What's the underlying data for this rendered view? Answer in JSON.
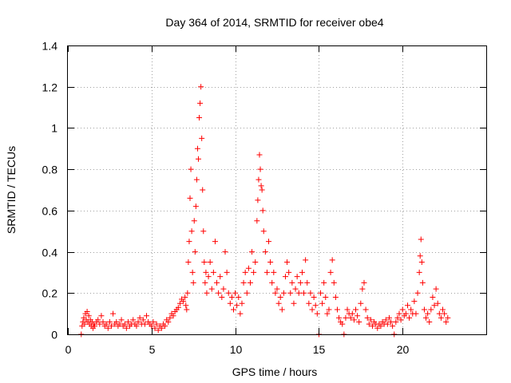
{
  "chart_data": {
    "type": "scatter",
    "title": "Day 364 of 2014, SRMTID for receiver obe4",
    "xlabel": "GPS time / hours",
    "ylabel": "SRMTID / TECUs",
    "xlim": [
      0,
      25
    ],
    "ylim": [
      0,
      1.4
    ],
    "xticks": [
      0,
      5,
      10,
      15,
      20
    ],
    "xtick_labels": [
      "0",
      "5",
      "10",
      "15",
      "20"
    ],
    "yticks": [
      0,
      0.2,
      0.4,
      0.6,
      0.8,
      1.0,
      1.2,
      1.4
    ],
    "ytick_labels": [
      "0",
      "0.2",
      "0.4",
      "0.6",
      "0.8",
      "1",
      "1.2",
      "1.4"
    ],
    "grid": true,
    "marker": "plus",
    "color": "#ff0000",
    "series": [
      {
        "name": "obe4",
        "points": [
          [
            0.8,
            0.0
          ],
          [
            0.85,
            0.04
          ],
          [
            0.9,
            0.06
          ],
          [
            0.95,
            0.08
          ],
          [
            1.0,
            0.05
          ],
          [
            1.05,
            0.1
          ],
          [
            1.1,
            0.07
          ],
          [
            1.15,
            0.11
          ],
          [
            1.2,
            0.06
          ],
          [
            1.25,
            0.09
          ],
          [
            1.3,
            0.05
          ],
          [
            1.35,
            0.07
          ],
          [
            1.4,
            0.04
          ],
          [
            1.45,
            0.06
          ],
          [
            1.5,
            0.03
          ],
          [
            1.55,
            0.05
          ],
          [
            1.6,
            0.04
          ],
          [
            1.7,
            0.06
          ],
          [
            1.8,
            0.07
          ],
          [
            1.9,
            0.05
          ],
          [
            2.0,
            0.09
          ],
          [
            2.1,
            0.06
          ],
          [
            2.2,
            0.04
          ],
          [
            2.3,
            0.05
          ],
          [
            2.4,
            0.03
          ],
          [
            2.5,
            0.06
          ],
          [
            2.6,
            0.04
          ],
          [
            2.7,
            0.1
          ],
          [
            2.8,
            0.05
          ],
          [
            2.9,
            0.06
          ],
          [
            3.0,
            0.04
          ],
          [
            3.1,
            0.05
          ],
          [
            3.2,
            0.07
          ],
          [
            3.3,
            0.04
          ],
          [
            3.4,
            0.05
          ],
          [
            3.5,
            0.03
          ],
          [
            3.6,
            0.06
          ],
          [
            3.7,
            0.04
          ],
          [
            3.8,
            0.05
          ],
          [
            3.9,
            0.07
          ],
          [
            4.0,
            0.05
          ],
          [
            4.1,
            0.04
          ],
          [
            4.2,
            0.06
          ],
          [
            4.3,
            0.08
          ],
          [
            4.4,
            0.05
          ],
          [
            4.5,
            0.07
          ],
          [
            4.6,
            0.05
          ],
          [
            4.7,
            0.09
          ],
          [
            4.8,
            0.06
          ],
          [
            4.9,
            0.05
          ],
          [
            5.0,
            0.04
          ],
          [
            5.1,
            0.06
          ],
          [
            5.2,
            0.03
          ],
          [
            5.3,
            0.05
          ],
          [
            5.4,
            0.02
          ],
          [
            5.5,
            0.04
          ],
          [
            5.6,
            0.03
          ],
          [
            5.7,
            0.05
          ],
          [
            5.8,
            0.04
          ],
          [
            5.9,
            0.07
          ],
          [
            6.0,
            0.06
          ],
          [
            6.1,
            0.08
          ],
          [
            6.2,
            0.1
          ],
          [
            6.3,
            0.09
          ],
          [
            6.4,
            0.11
          ],
          [
            6.5,
            0.12
          ],
          [
            6.6,
            0.13
          ],
          [
            6.7,
            0.15
          ],
          [
            6.8,
            0.17
          ],
          [
            6.9,
            0.16
          ],
          [
            7.0,
            0.18
          ],
          [
            7.05,
            0.14
          ],
          [
            7.1,
            0.12
          ],
          [
            7.15,
            0.2
          ],
          [
            7.2,
            0.35
          ],
          [
            7.25,
            0.45
          ],
          [
            7.3,
            0.66
          ],
          [
            7.35,
            0.8
          ],
          [
            7.4,
            0.5
          ],
          [
            7.45,
            0.3
          ],
          [
            7.5,
            0.25
          ],
          [
            7.55,
            0.55
          ],
          [
            7.6,
            0.4
          ],
          [
            7.65,
            0.62
          ],
          [
            7.7,
            0.75
          ],
          [
            7.75,
            0.9
          ],
          [
            7.8,
            0.85
          ],
          [
            7.85,
            1.05
          ],
          [
            7.9,
            1.12
          ],
          [
            7.95,
            1.2
          ],
          [
            8.0,
            0.95
          ],
          [
            8.05,
            0.7
          ],
          [
            8.1,
            0.5
          ],
          [
            8.15,
            0.35
          ],
          [
            8.2,
            0.25
          ],
          [
            8.25,
            0.3
          ],
          [
            8.3,
            0.2
          ],
          [
            8.4,
            0.28
          ],
          [
            8.5,
            0.35
          ],
          [
            8.6,
            0.22
          ],
          [
            8.7,
            0.3
          ],
          [
            8.8,
            0.45
          ],
          [
            8.9,
            0.25
          ],
          [
            9.0,
            0.2
          ],
          [
            9.1,
            0.28
          ],
          [
            9.2,
            0.18
          ],
          [
            9.3,
            0.22
          ],
          [
            9.4,
            0.4
          ],
          [
            9.5,
            0.3
          ],
          [
            9.6,
            0.2
          ],
          [
            9.7,
            0.15
          ],
          [
            9.8,
            0.18
          ],
          [
            9.9,
            0.12
          ],
          [
            10.0,
            0.2
          ],
          [
            10.1,
            0.14
          ],
          [
            10.2,
            0.18
          ],
          [
            10.3,
            0.1
          ],
          [
            10.4,
            0.15
          ],
          [
            10.5,
            0.25
          ],
          [
            10.6,
            0.3
          ],
          [
            10.7,
            0.2
          ],
          [
            10.8,
            0.32
          ],
          [
            10.9,
            0.25
          ],
          [
            11.0,
            0.4
          ],
          [
            11.1,
            0.3
          ],
          [
            11.2,
            0.35
          ],
          [
            11.3,
            0.55
          ],
          [
            11.35,
            0.65
          ],
          [
            11.4,
            0.75
          ],
          [
            11.45,
            0.87
          ],
          [
            11.5,
            0.8
          ],
          [
            11.55,
            0.72
          ],
          [
            11.6,
            0.7
          ],
          [
            11.65,
            0.6
          ],
          [
            11.7,
            0.5
          ],
          [
            11.8,
            0.4
          ],
          [
            11.9,
            0.3
          ],
          [
            12.0,
            0.45
          ],
          [
            12.1,
            0.35
          ],
          [
            12.2,
            0.25
          ],
          [
            12.3,
            0.3
          ],
          [
            12.4,
            0.2
          ],
          [
            12.5,
            0.22
          ],
          [
            12.6,
            0.15
          ],
          [
            12.7,
            0.18
          ],
          [
            12.8,
            0.12
          ],
          [
            12.9,
            0.2
          ],
          [
            13.0,
            0.28
          ],
          [
            13.1,
            0.35
          ],
          [
            13.2,
            0.3
          ],
          [
            13.3,
            0.2
          ],
          [
            13.4,
            0.25
          ],
          [
            13.5,
            0.15
          ],
          [
            13.6,
            0.22
          ],
          [
            13.7,
            0.28
          ],
          [
            13.8,
            0.2
          ],
          [
            13.9,
            0.25
          ],
          [
            14.0,
            0.3
          ],
          [
            14.1,
            0.2
          ],
          [
            14.2,
            0.36
          ],
          [
            14.3,
            0.25
          ],
          [
            14.4,
            0.15
          ],
          [
            14.5,
            0.2
          ],
          [
            14.6,
            0.12
          ],
          [
            14.7,
            0.18
          ],
          [
            14.8,
            0.14
          ],
          [
            14.9,
            0.1
          ],
          [
            15.0,
            0.0
          ],
          [
            15.1,
            0.2
          ],
          [
            15.2,
            0.15
          ],
          [
            15.3,
            0.25
          ],
          [
            15.4,
            0.18
          ],
          [
            15.5,
            0.1
          ],
          [
            15.6,
            0.12
          ],
          [
            15.7,
            0.3
          ],
          [
            15.8,
            0.36
          ],
          [
            15.9,
            0.25
          ],
          [
            16.0,
            0.18
          ],
          [
            16.1,
            0.12
          ],
          [
            16.2,
            0.08
          ],
          [
            16.3,
            0.06
          ],
          [
            16.4,
            0.05
          ],
          [
            16.5,
            0.0
          ],
          [
            16.6,
            0.08
          ],
          [
            16.7,
            0.12
          ],
          [
            16.8,
            0.1
          ],
          [
            16.9,
            0.08
          ],
          [
            17.0,
            0.1
          ],
          [
            17.1,
            0.07
          ],
          [
            17.2,
            0.12
          ],
          [
            17.3,
            0.09
          ],
          [
            17.4,
            0.06
          ],
          [
            17.5,
            0.15
          ],
          [
            17.6,
            0.22
          ],
          [
            17.7,
            0.25
          ],
          [
            17.8,
            0.12
          ],
          [
            17.9,
            0.08
          ],
          [
            18.0,
            0.05
          ],
          [
            18.1,
            0.07
          ],
          [
            18.2,
            0.04
          ],
          [
            18.3,
            0.06
          ],
          [
            18.4,
            0.05
          ],
          [
            18.5,
            0.03
          ],
          [
            18.6,
            0.05
          ],
          [
            18.7,
            0.04
          ],
          [
            18.8,
            0.06
          ],
          [
            18.9,
            0.05
          ],
          [
            19.0,
            0.07
          ],
          [
            19.1,
            0.05
          ],
          [
            19.2,
            0.08
          ],
          [
            19.3,
            0.06
          ],
          [
            19.4,
            0.04
          ],
          [
            19.5,
            0.0
          ],
          [
            19.6,
            0.06
          ],
          [
            19.7,
            0.08
          ],
          [
            19.8,
            0.1
          ],
          [
            19.9,
            0.07
          ],
          [
            20.0,
            0.12
          ],
          [
            20.1,
            0.09
          ],
          [
            20.2,
            0.1
          ],
          [
            20.3,
            0.14
          ],
          [
            20.4,
            0.08
          ],
          [
            20.5,
            0.12
          ],
          [
            20.6,
            0.1
          ],
          [
            20.7,
            0.16
          ],
          [
            20.8,
            0.1
          ],
          [
            20.9,
            0.2
          ],
          [
            21.0,
            0.3
          ],
          [
            21.05,
            0.38
          ],
          [
            21.1,
            0.46
          ],
          [
            21.15,
            0.35
          ],
          [
            21.2,
            0.25
          ],
          [
            21.3,
            0.12
          ],
          [
            21.4,
            0.08
          ],
          [
            21.5,
            0.1
          ],
          [
            21.6,
            0.06
          ],
          [
            21.7,
            0.12
          ],
          [
            21.8,
            0.18
          ],
          [
            21.9,
            0.14
          ],
          [
            22.0,
            0.22
          ],
          [
            22.1,
            0.15
          ],
          [
            22.2,
            0.1
          ],
          [
            22.3,
            0.08
          ],
          [
            22.4,
            0.12
          ],
          [
            22.5,
            0.1
          ],
          [
            22.6,
            0.06
          ],
          [
            22.7,
            0.08
          ]
        ]
      }
    ]
  }
}
